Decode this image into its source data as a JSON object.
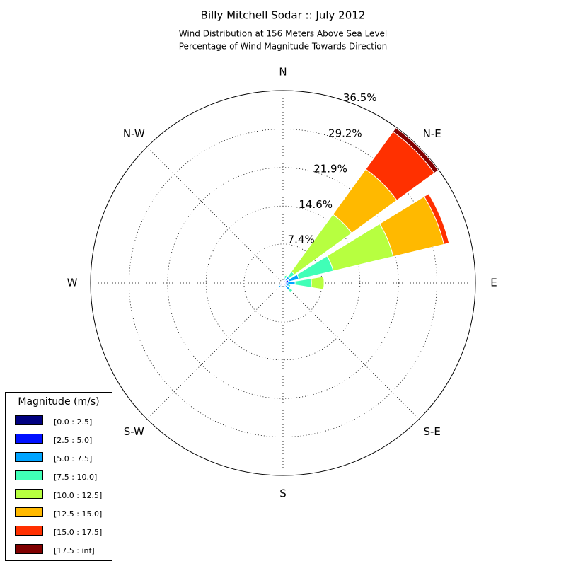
{
  "chart_data": {
    "type": "windrose",
    "title": "Billy Mitchell Sodar :: July 2012",
    "subtitle": [
      "Wind Distribution at 156 Meters Above Sea Level",
      "Percentage of Wind Magnitude Towards Direction"
    ],
    "categories": [
      "N",
      null,
      "N-E",
      null,
      "E",
      null,
      "S-E",
      null,
      "S",
      null,
      "S-W",
      null,
      "W",
      null,
      "N-W",
      null
    ],
    "rlim": [
      0,
      36.5
    ],
    "rticks": [
      {
        "value": 7.4,
        "label": "7.4%"
      },
      {
        "value": 14.6,
        "label": "14.6%"
      },
      {
        "value": 21.9,
        "label": "21.9%"
      },
      {
        "value": 29.2,
        "label": "29.2%"
      },
      {
        "value": 36.5,
        "label": "36.5%"
      }
    ],
    "grid": true,
    "legend_title": "Magnitude (m/s)",
    "legend_position": "lower left",
    "series": [
      {
        "name": "[0.0 : 2.5]",
        "color": "#000080",
        "values": [
          0.1,
          0.1,
          0.2,
          0.3,
          0.3,
          0.2,
          0.2,
          0.2,
          0.2,
          0.2,
          0.2,
          0.2,
          0.2,
          0.1,
          0.1,
          0.1
        ]
      },
      {
        "name": "[2.5 : 5.0]",
        "color": "#0010ff",
        "values": [
          0.2,
          0.4,
          0.5,
          0.8,
          0.5,
          0.4,
          0.5,
          0.3,
          0.3,
          0.4,
          0.5,
          0.4,
          0.3,
          0.2,
          0.2,
          0.1
        ]
      },
      {
        "name": "[5.0 : 7.5]",
        "color": "#00a4ff",
        "values": [
          0.2,
          0.5,
          0.8,
          2.0,
          1.5,
          0.6,
          1.0,
          0.3,
          0,
          0.2,
          0.5,
          0.3,
          0,
          0,
          0,
          0
        ]
      },
      {
        "name": "[7.5 : 10.0]",
        "color": "#40ffb7",
        "values": [
          0,
          0.5,
          1.2,
          6.7,
          3.1,
          0.3,
          0.6,
          0,
          0,
          0,
          0,
          0,
          0,
          0,
          0,
          0
        ]
      },
      {
        "name": "[10.0 : 12.5]",
        "color": "#b7ff40",
        "values": [
          0,
          0.3,
          13.4,
          11.7,
          2.4,
          0,
          0,
          0,
          0,
          0,
          0,
          0,
          0,
          0,
          0,
          0
        ]
      },
      {
        "name": "[12.5 : 15.0]",
        "color": "#ffb900",
        "values": [
          0,
          0,
          10.6,
          9.9,
          0.1,
          0,
          0,
          0,
          0,
          0,
          0,
          0,
          0,
          0,
          0,
          0
        ]
      },
      {
        "name": "[15.0 : 17.5]",
        "color": "#ff3000",
        "values": [
          0,
          0,
          8.8,
          1.0,
          0,
          0,
          0,
          0,
          0,
          0,
          0,
          0,
          0,
          0,
          0,
          0
        ]
      },
      {
        "name": "[17.5 : inf]",
        "color": "#800000",
        "values": [
          0,
          0,
          0.9,
          0,
          0,
          0,
          0,
          0,
          0,
          0,
          0,
          0,
          0,
          0,
          0,
          0
        ]
      }
    ]
  }
}
